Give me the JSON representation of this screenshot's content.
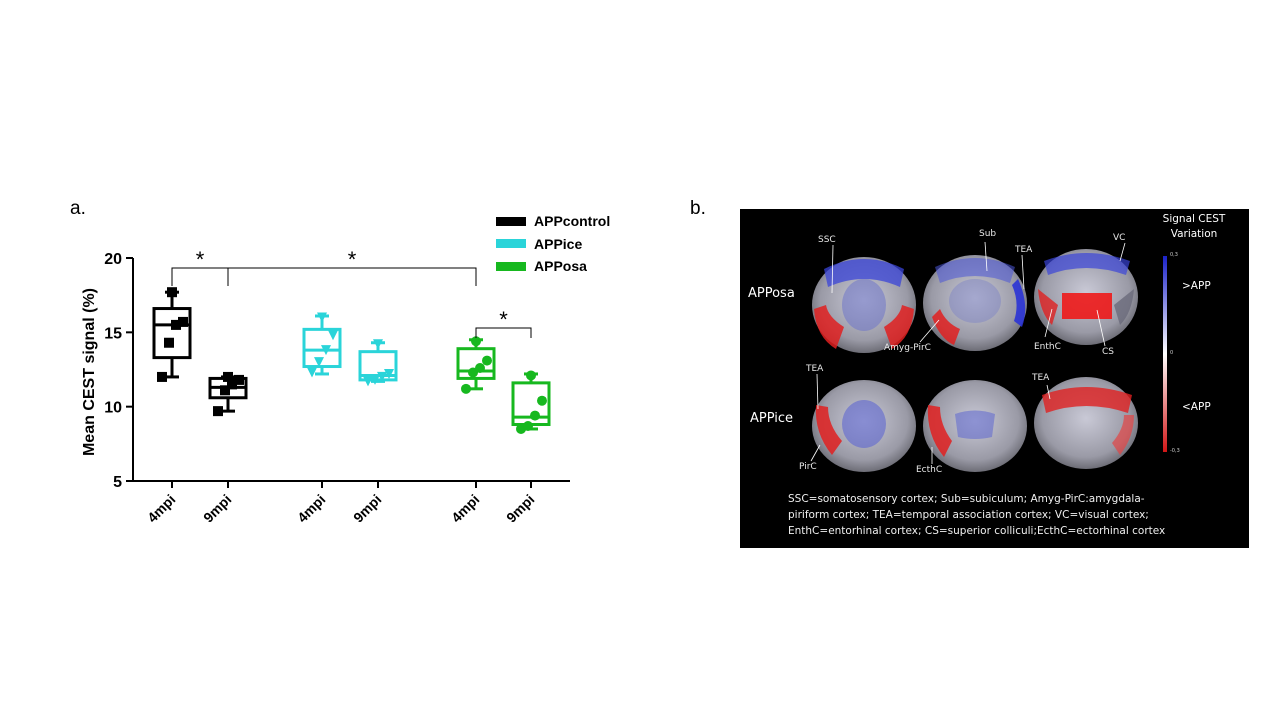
{
  "panel_a": {
    "label": "a."
  },
  "panel_b": {
    "label": "b.",
    "row_labels": [
      "APPosa",
      "APPice"
    ],
    "colorbar": {
      "title_line1": "Signal CEST",
      "title_line2": "Variation",
      "upper_label": ">APP",
      "lower_label": "<APP",
      "tick_top": "0,3",
      "tick_mid": "0",
      "tick_bottom": "-0,3"
    },
    "regions": {
      "ssc": "SSC",
      "sub": "Sub",
      "tea_top": "TEA",
      "vc": "VC",
      "amyg": "Amyg-PirC",
      "enthc": "EnthC",
      "cs": "CS",
      "tea_left": "TEA",
      "tea_right": "TEA",
      "pirc": "PirC",
      "ecthc": "EcthC"
    },
    "abbreviations": [
      "SSC=somatosensory cortex; Sub=subiculum; Amyg-PirC:amygdala-",
      "piriform cortex; TEA=temporal association cortex; VC=visual cortex;",
      "EnthC=entorhinal cortex; CS=superior colliculi;EcthC=ectorhinal cortex"
    ]
  },
  "chart_data": {
    "type": "box",
    "ylabel": "Mean CEST signal (%)",
    "ylim": [
      5,
      20
    ],
    "yticks": [
      5,
      10,
      15,
      20
    ],
    "legend_position": "top-right",
    "series": [
      {
        "name": "APPcontrol",
        "color": "#000000",
        "marker": "square",
        "groups": [
          {
            "x_label": "4mpi",
            "min": 12.0,
            "q1": 13.3,
            "median": 15.5,
            "q3": 16.6,
            "max": 17.7,
            "points": [
              12.0,
              14.3,
              15.5,
              15.7,
              17.7
            ]
          },
          {
            "x_label": "9mpi",
            "min": 9.7,
            "q1": 10.6,
            "median": 11.3,
            "q3": 11.9,
            "max": 12.0,
            "points": [
              9.7,
              11.1,
              11.5,
              11.8,
              12.0
            ]
          }
        ]
      },
      {
        "name": "APPice",
        "color": "#2ad4d9",
        "marker": "triangle-down",
        "groups": [
          {
            "x_label": "4mpi",
            "min": 12.2,
            "q1": 12.7,
            "median": 13.8,
            "q3": 15.2,
            "max": 16.1,
            "points": [
              12.3,
              13.0,
              13.8,
              14.8,
              16.0
            ]
          },
          {
            "x_label": "9mpi",
            "min": 11.7,
            "q1": 11.8,
            "median": 12.1,
            "q3": 13.7,
            "max": 14.3,
            "points": [
              11.7,
              11.8,
              12.0,
              12.2,
              14.2
            ]
          }
        ]
      },
      {
        "name": "APPosa",
        "color": "#17b81f",
        "marker": "circle",
        "groups": [
          {
            "x_label": "4mpi",
            "min": 11.2,
            "q1": 11.9,
            "median": 12.4,
            "q3": 13.9,
            "max": 14.5,
            "points": [
              11.2,
              12.3,
              12.6,
              13.1,
              14.4
            ]
          },
          {
            "x_label": "9mpi",
            "min": 8.5,
            "q1": 8.8,
            "median": 9.3,
            "q3": 11.6,
            "max": 12.2,
            "points": [
              8.5,
              8.7,
              9.4,
              10.4,
              12.1
            ]
          }
        ]
      }
    ],
    "annotations": [
      {
        "text": "*",
        "from": "APPcontrol 4mpi",
        "to": "APPcontrol 9mpi"
      },
      {
        "text": "*",
        "from": "APPcontrol 9mpi",
        "to": "APPosa 4mpi"
      },
      {
        "text": "*",
        "from": "APPosa 4mpi",
        "to": "APPosa 9mpi"
      }
    ]
  }
}
